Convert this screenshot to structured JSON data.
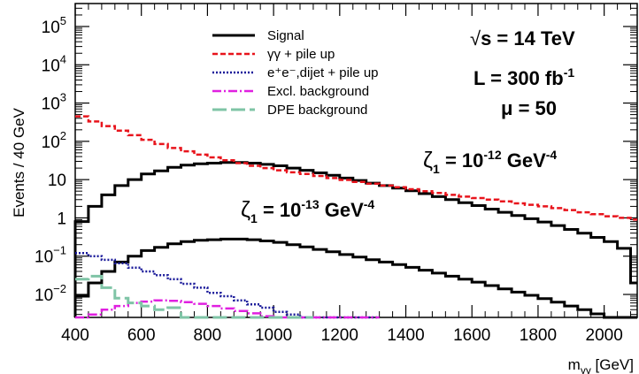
{
  "chart_data": {
    "type": "line",
    "step": true,
    "xlabel_main": "m",
    "xlabel_sub": "γγ",
    "xlabel_unit": " [GeV]",
    "ylabel": "Events / 40 GeV",
    "xlim": [
      400,
      2100
    ],
    "ylog": true,
    "ylim_log10": [
      -2.6,
      5.6
    ],
    "x_ticks": [
      400,
      600,
      800,
      1000,
      1200,
      1400,
      1600,
      1800,
      2000
    ],
    "y_ticks": [
      {
        "exp": 5,
        "label_base": "10",
        "label_exp": "5"
      },
      {
        "exp": 4,
        "label_base": "10",
        "label_exp": "4"
      },
      {
        "exp": 3,
        "label_base": "10",
        "label_exp": "3"
      },
      {
        "exp": 2,
        "label_base": "10",
        "label_exp": "2"
      },
      {
        "exp": 1,
        "label_base": "10",
        "label_exp": ""
      },
      {
        "exp": 0,
        "label_base": "1",
        "label_exp": ""
      },
      {
        "exp": -1,
        "label_base": "10",
        "label_exp": "−1"
      },
      {
        "exp": -2,
        "label_base": "10",
        "label_exp": "−2"
      }
    ],
    "legend": {
      "position": "top-center",
      "entries": [
        {
          "text": "Signal",
          "color": "#000000",
          "dash": "solid",
          "width": 3
        },
        {
          "text": "γγ + pile up",
          "color": "#e8141c",
          "dash": "6,3",
          "width": 2.5
        },
        {
          "text": "e⁺e⁻,dijet + pile up",
          "color": "#1a1a9a",
          "dash": "2,2",
          "width": 2.5
        },
        {
          "text": "Excl. background",
          "color": "#e020e0",
          "dash": "10,3,2,3",
          "width": 2.5
        },
        {
          "text": "DPE background",
          "color": "#7fc4a6",
          "dash": "16,5",
          "width": 3
        }
      ]
    },
    "annotations": {
      "sqrt_s": "s = 14 TeV",
      "sqrt_sym": "√",
      "lumi": "L = 300 fb",
      "lumi_exp": "-1",
      "mu": "μ = 50",
      "zeta_hi_sym": "ζ",
      "zeta_hi_sub": "1",
      "zeta_hi_val": " = 10",
      "zeta_hi_exp": "-12",
      "zeta_hi_unit": " GeV",
      "zeta_hi_unit_exp": "-4",
      "zeta_lo_sym": "ζ",
      "zeta_lo_sub": "1",
      "zeta_lo_val": " = 10",
      "zeta_lo_exp": "-13",
      "zeta_lo_unit": " GeV",
      "zeta_lo_unit_exp": "-4"
    },
    "series": [
      {
        "name": "Signal ζ1=10^-12",
        "color": "#000000",
        "dash": "solid",
        "width": 3,
        "x": [
          400,
          440,
          480,
          520,
          560,
          600,
          640,
          680,
          720,
          760,
          800,
          840,
          880,
          920,
          960,
          1000,
          1040,
          1080,
          1120,
          1160,
          1200,
          1240,
          1280,
          1320,
          1360,
          1400,
          1440,
          1480,
          1520,
          1560,
          1600,
          1640,
          1680,
          1720,
          1760,
          1800,
          1840,
          1880,
          1920,
          1960,
          2000,
          2040,
          2080
        ],
        "y": [
          0.8,
          2,
          4,
          7,
          10,
          14,
          17,
          21,
          24,
          26,
          27,
          28,
          28,
          27,
          25,
          23,
          20,
          17.5,
          15,
          13,
          11,
          9.5,
          8.1,
          7,
          6,
          5.1,
          4.3,
          3.6,
          3,
          2.5,
          2.1,
          1.7,
          1.4,
          1.15,
          0.95,
          0.78,
          0.63,
          0.5,
          0.4,
          0.31,
          0.24,
          0.16,
          0.02
        ]
      },
      {
        "name": "Signal ζ1=10^-13",
        "color": "#000000",
        "dash": "solid",
        "width": 3,
        "x": [
          400,
          440,
          480,
          520,
          560,
          600,
          640,
          680,
          720,
          760,
          800,
          840,
          880,
          920,
          960,
          1000,
          1040,
          1080,
          1120,
          1160,
          1200,
          1240,
          1280,
          1320,
          1360,
          1400,
          1440,
          1480,
          1520,
          1560,
          1600,
          1640,
          1680,
          1720,
          1760,
          1800,
          1840,
          1880,
          1920,
          1960,
          2000,
          2040,
          2080
        ],
        "y": [
          0.009,
          0.02,
          0.04,
          0.07,
          0.1,
          0.14,
          0.17,
          0.21,
          0.24,
          0.26,
          0.27,
          0.28,
          0.28,
          0.27,
          0.25,
          0.23,
          0.2,
          0.175,
          0.15,
          0.13,
          0.11,
          0.095,
          0.081,
          0.07,
          0.06,
          0.051,
          0.043,
          0.036,
          0.03,
          0.025,
          0.021,
          0.017,
          0.014,
          0.0115,
          0.0095,
          0.0078,
          0.0063,
          0.005,
          0.004,
          0.0031,
          0.0024,
          0.0016,
          0.0016
        ]
      },
      {
        "name": "γγ + pile up",
        "color": "#e8141c",
        "dash": "6,3",
        "width": 2.5,
        "x": [
          400,
          440,
          480,
          520,
          560,
          600,
          640,
          680,
          720,
          760,
          800,
          840,
          880,
          920,
          960,
          1000,
          1040,
          1080,
          1120,
          1160,
          1200,
          1240,
          1280,
          1320,
          1360,
          1400,
          1440,
          1480,
          1520,
          1560,
          1600,
          1640,
          1680,
          1720,
          1760,
          1800,
          1840,
          1880,
          1920,
          1960,
          2000,
          2040,
          2080
        ],
        "y": [
          450,
          330,
          250,
          190,
          145,
          110,
          85,
          67,
          55,
          45,
          38,
          32,
          27,
          23,
          20,
          17.5,
          15.5,
          14,
          12.5,
          11,
          9.8,
          8.7,
          7.8,
          7,
          6.3,
          5.6,
          5,
          4.5,
          4,
          3.6,
          3.3,
          3,
          2.7,
          2.4,
          2.2,
          2,
          1.8,
          1.6,
          1.4,
          1.25,
          1.1,
          1,
          0.9
        ]
      },
      {
        "name": "e⁺e⁻,dijet + pile up",
        "color": "#1a1a9a",
        "dash": "2,2",
        "width": 2.5,
        "x": [
          400,
          440,
          480,
          520,
          560,
          600,
          640,
          680,
          720,
          760,
          800,
          840,
          880,
          920,
          960,
          1000,
          1040,
          1080,
          1120,
          1160,
          1200,
          1240,
          1280
        ],
        "y": [
          0.12,
          0.1,
          0.08,
          0.065,
          0.05,
          0.04,
          0.032,
          0.025,
          0.019,
          0.015,
          0.011,
          0.009,
          0.007,
          0.0055,
          0.0045,
          0.0035,
          0.003,
          0.0024,
          0.002,
          0.0017,
          0.0016,
          0.0016,
          0.0016
        ]
      },
      {
        "name": "Excl. background",
        "color": "#e020e0",
        "dash": "10,3,2,3",
        "width": 2.5,
        "x": [
          400,
          440,
          480,
          520,
          560,
          600,
          640,
          680,
          720,
          760,
          800,
          840,
          880,
          920,
          960,
          1000,
          1040,
          1080,
          1120,
          1160,
          1200,
          1240,
          1280
        ],
        "y": [
          0.0025,
          0.003,
          0.004,
          0.005,
          0.006,
          0.0065,
          0.007,
          0.0068,
          0.0063,
          0.0057,
          0.005,
          0.0043,
          0.0037,
          0.0032,
          0.0027,
          0.0023,
          0.002,
          0.0018,
          0.0016,
          0.0016,
          0.0016,
          0.0016,
          0.0016
        ]
      },
      {
        "name": "DPE background",
        "color": "#7fc4a6",
        "dash": "16,5",
        "width": 3,
        "x": [
          400,
          440,
          480,
          520,
          560,
          600,
          640,
          680,
          720,
          760,
          800,
          840,
          880,
          920,
          960,
          1000,
          1040,
          1080
        ],
        "y": [
          0.025,
          0.03,
          0.015,
          0.008,
          0.006,
          0.005,
          0.004,
          0.0045,
          0.0022,
          0.0018,
          0.0016,
          0.0016,
          0.0016,
          0.0016,
          0.0016,
          0.0016,
          0.0016,
          0.0016
        ]
      }
    ]
  }
}
